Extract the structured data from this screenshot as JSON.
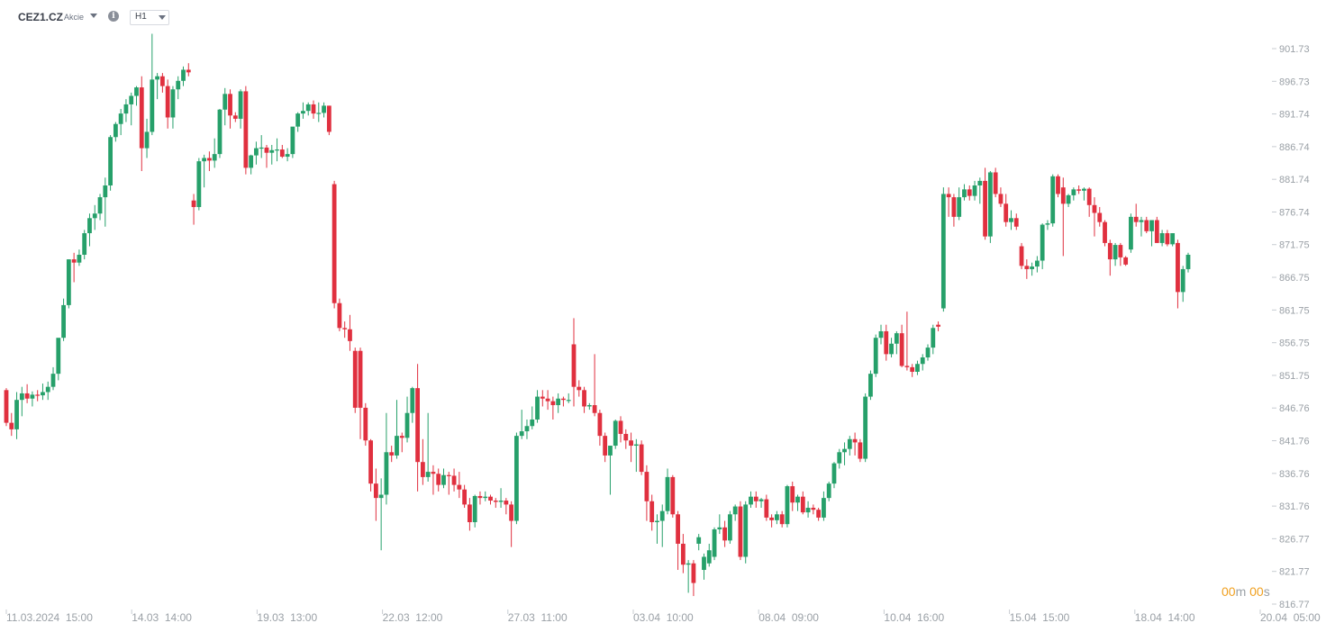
{
  "header": {
    "symbol": "CEZ1.CZ",
    "symbol_type": "Akcie",
    "info_icon": "info-icon",
    "timeframe": "H1"
  },
  "countdown": {
    "minutes": "00",
    "m": "m",
    "seconds": "00",
    "s": "s"
  },
  "colors": {
    "up": "#26a06a",
    "down": "#e0303f",
    "axis_text": "#9aa0a6",
    "tick": "#c8ccd2",
    "timer": "#f0a020"
  },
  "chart_data": {
    "type": "candlestick",
    "title": "",
    "xlabel": "",
    "ylabel": "",
    "ylim": [
      816.77,
      904.0
    ],
    "y_ticks": [
      "901.73",
      "896.73",
      "891.74",
      "886.74",
      "881.74",
      "876.74",
      "871.75",
      "866.75",
      "861.75",
      "856.75",
      "851.75",
      "846.76",
      "841.76",
      "836.76",
      "831.76",
      "826.77",
      "821.77",
      "816.77"
    ],
    "x_tick_labels": [
      "11.03.2024  15:00",
      "14.03  14:00",
      "19.03  13:00",
      "22.03  12:00",
      "27.03  11:00",
      "03.04  10:00",
      "08.04  09:00",
      "10.04  16:00",
      "15.04  15:00",
      "18.04  14:00",
      "20.04  05:00"
    ],
    "candles_ohlc": [
      [
        849.5,
        849.8,
        844.0,
        844.5
      ],
      [
        844.5,
        846.0,
        842.5,
        843.5
      ],
      [
        843.5,
        849.2,
        842.0,
        848.0
      ],
      [
        848.0,
        850.0,
        845.5,
        849.0
      ],
      [
        849.0,
        850.4,
        847.5,
        848.2
      ],
      [
        848.2,
        849.3,
        847.0,
        848.8
      ],
      [
        848.8,
        849.5,
        847.8,
        848.7
      ],
      [
        848.7,
        850.5,
        848.0,
        849.2
      ],
      [
        849.2,
        850.8,
        848.0,
        850.0
      ],
      [
        850.0,
        853.0,
        849.5,
        852.0
      ],
      [
        852.0,
        857.0,
        851.0,
        857.5
      ],
      [
        857.5,
        863.5,
        857.0,
        862.5
      ],
      [
        862.5,
        869.5,
        862.0,
        869.5
      ],
      [
        869.5,
        870.5,
        866.0,
        869.0
      ],
      [
        869.0,
        871.0,
        868.5,
        870.2
      ],
      [
        870.2,
        874.0,
        869.5,
        873.5
      ],
      [
        873.5,
        876.5,
        871.5,
        875.8
      ],
      [
        875.8,
        877.8,
        874.0,
        876.5
      ],
      [
        876.5,
        879.5,
        875.5,
        879.0
      ],
      [
        879.0,
        882.0,
        874.5,
        880.8
      ],
      [
        880.8,
        888.5,
        880.0,
        888.2
      ],
      [
        888.2,
        890.5,
        887.5,
        890.2
      ],
      [
        890.2,
        892.5,
        888.5,
        891.8
      ],
      [
        891.8,
        894.0,
        890.5,
        893.2
      ],
      [
        893.2,
        895.0,
        890.0,
        894.5
      ],
      [
        894.5,
        896.0,
        893.0,
        895.8
      ],
      [
        895.8,
        897.5,
        883.0,
        886.5
      ],
      [
        886.5,
        891.0,
        885.0,
        889.0
      ],
      [
        889.0,
        904.0,
        888.5,
        897.0
      ],
      [
        897.0,
        898.0,
        894.0,
        897.5
      ],
      [
        897.5,
        898.0,
        895.0,
        896.0
      ],
      [
        896.0,
        897.0,
        889.5,
        891.2
      ],
      [
        891.2,
        896.0,
        889.5,
        895.5
      ],
      [
        895.5,
        897.5,
        894.0,
        896.8
      ],
      [
        896.8,
        899.0,
        896.0,
        898.5
      ],
      [
        898.5,
        899.5,
        897.5,
        898.1
      ],
      [
        878.5,
        879.5,
        874.8,
        877.5
      ],
      [
        877.5,
        885.0,
        877.0,
        884.5
      ],
      [
        884.5,
        885.5,
        880.5,
        885.0
      ],
      [
        885.0,
        886.0,
        883.0,
        884.6
      ],
      [
        884.6,
        888.0,
        883.5,
        885.6
      ],
      [
        885.6,
        892.5,
        885.0,
        892.4
      ],
      [
        892.4,
        895.7,
        890.0,
        894.8
      ],
      [
        894.8,
        895.5,
        889.5,
        891.5
      ],
      [
        891.5,
        892.0,
        890.5,
        891.0
      ],
      [
        891.0,
        895.5,
        889.5,
        895.2
      ],
      [
        895.2,
        896.0,
        882.5,
        883.5
      ],
      [
        883.5,
        885.5,
        882.5,
        885.4
      ],
      [
        885.4,
        887.5,
        884.0,
        886.5
      ],
      [
        886.5,
        888.5,
        885.0,
        886.6
      ],
      [
        886.6,
        887.0,
        883.5,
        885.8
      ],
      [
        885.8,
        887.0,
        884.0,
        886.2
      ],
      [
        886.2,
        888.0,
        884.5,
        886.3
      ],
      [
        886.3,
        887.0,
        885.0,
        885.2
      ],
      [
        885.2,
        886.5,
        884.5,
        885.6
      ],
      [
        885.6,
        888.5,
        885.0,
        889.8
      ],
      [
        889.8,
        892.0,
        889.0,
        891.8
      ],
      [
        891.8,
        893.5,
        891.0,
        892.2
      ],
      [
        892.2,
        893.5,
        891.5,
        893.2
      ],
      [
        893.2,
        893.8,
        891.0,
        891.8
      ],
      [
        891.8,
        893.5,
        890.5,
        891.9
      ],
      [
        891.9,
        893.5,
        891.2,
        893.0
      ],
      [
        893.0,
        893.0,
        888.5,
        889.0
      ],
      [
        881.0,
        881.5,
        862.0,
        862.8
      ],
      [
        862.8,
        863.5,
        858.5,
        859.0
      ],
      [
        859.0,
        860.0,
        857.5,
        858.8
      ],
      [
        858.8,
        861.0,
        855.5,
        857.0
      ],
      [
        855.5,
        856.0,
        846.0,
        846.8
      ],
      [
        855.5,
        856.0,
        842.0,
        846.8
      ],
      [
        846.8,
        847.5,
        841.0,
        841.8
      ],
      [
        841.8,
        842.0,
        834.0,
        835.2
      ],
      [
        835.2,
        837.5,
        829.5,
        833.0
      ],
      [
        833.0,
        836.0,
        825.0,
        833.5
      ],
      [
        833.5,
        846.0,
        832.0,
        840.0
      ],
      [
        840.0,
        841.0,
        838.5,
        839.5
      ],
      [
        839.5,
        848.0,
        839.0,
        842.5
      ],
      [
        842.5,
        843.0,
        840.0,
        842.2
      ],
      [
        842.2,
        848.5,
        841.5,
        846.0
      ],
      [
        846.0,
        850.0,
        844.5,
        849.8
      ],
      [
        849.8,
        853.5,
        834.0,
        838.5
      ],
      [
        838.5,
        842.0,
        835.0,
        836.2
      ],
      [
        836.2,
        846.0,
        835.5,
        837.0
      ],
      [
        837.0,
        838.0,
        833.5,
        836.7
      ],
      [
        836.7,
        837.5,
        834.0,
        835.0
      ],
      [
        835.0,
        837.5,
        834.5,
        836.5
      ],
      [
        836.5,
        837.0,
        833.5,
        836.4
      ],
      [
        836.4,
        837.5,
        834.0,
        835.0
      ],
      [
        835.0,
        837.0,
        833.0,
        834.3
      ],
      [
        834.3,
        835.0,
        831.5,
        832.0
      ],
      [
        832.0,
        833.0,
        828.0,
        829.3
      ],
      [
        829.3,
        833.5,
        828.5,
        833.3
      ],
      [
        833.3,
        834.0,
        832.0,
        833.0
      ],
      [
        833.0,
        834.0,
        832.5,
        833.2
      ],
      [
        833.2,
        833.5,
        832.0,
        832.6
      ],
      [
        832.6,
        833.0,
        831.5,
        832.4
      ],
      [
        832.4,
        834.5,
        831.5,
        832.6
      ],
      [
        832.6,
        833.0,
        830.5,
        832.0
      ],
      [
        832.0,
        832.5,
        825.5,
        829.5
      ],
      [
        829.5,
        843.0,
        829.0,
        842.5
      ],
      [
        842.5,
        846.5,
        842.0,
        843.2
      ],
      [
        843.2,
        845.0,
        842.0,
        844.0
      ],
      [
        844.0,
        847.0,
        843.5,
        845.0
      ],
      [
        845.0,
        849.5,
        844.5,
        848.5
      ],
      [
        848.5,
        849.5,
        847.0,
        848.2
      ],
      [
        848.2,
        849.5,
        846.5,
        847.8
      ],
      [
        847.8,
        848.5,
        845.0,
        847.2
      ],
      [
        847.2,
        849.0,
        846.0,
        848.2
      ],
      [
        848.2,
        848.5,
        847.0,
        848.0
      ],
      [
        848.0,
        849.0,
        847.5,
        848.0
      ],
      [
        856.5,
        860.5,
        847.0,
        850.0
      ],
      [
        850.0,
        851.0,
        848.5,
        849.5
      ],
      [
        849.5,
        850.0,
        846.0,
        847.0
      ],
      [
        847.0,
        847.5,
        846.5,
        847.2
      ],
      [
        847.2,
        855.0,
        845.5,
        846.0
      ],
      [
        846.0,
        846.5,
        841.0,
        842.5
      ],
      [
        842.5,
        843.0,
        838.5,
        839.5
      ],
      [
        839.5,
        841.0,
        833.5,
        841.0
      ],
      [
        841.0,
        845.0,
        840.5,
        844.8
      ],
      [
        844.8,
        845.5,
        841.5,
        842.8
      ],
      [
        842.8,
        843.5,
        840.5,
        841.8
      ],
      [
        841.8,
        843.0,
        838.5,
        841.0
      ],
      [
        841.0,
        842.0,
        837.0,
        841.2
      ],
      [
        841.2,
        841.8,
        836.5,
        837.0
      ],
      [
        837.0,
        838.0,
        829.5,
        832.5
      ],
      [
        832.5,
        833.5,
        828.0,
        829.3
      ],
      [
        829.3,
        830.5,
        826.0,
        829.5
      ],
      [
        829.5,
        832.0,
        825.5,
        831.0
      ],
      [
        831.0,
        837.5,
        830.5,
        836.2
      ],
      [
        836.2,
        836.5,
        830.0,
        830.5
      ],
      [
        830.5,
        831.0,
        822.0,
        826.0
      ],
      [
        826.0,
        827.5,
        821.5,
        822.8
      ],
      [
        822.8,
        823.5,
        818.5,
        823.0
      ],
      [
        823.0,
        823.5,
        818.0,
        820.0
      ],
      [
        826.0,
        827.5,
        825.0,
        827.0
      ],
      [
        822.0,
        824.5,
        820.5,
        824.0
      ],
      [
        823.0,
        826.0,
        822.5,
        825.0
      ],
      [
        824.0,
        828.5,
        823.5,
        828.2
      ],
      [
        828.2,
        830.5,
        827.5,
        828.5
      ],
      [
        828.5,
        829.5,
        825.5,
        826.5
      ],
      [
        826.5,
        831.0,
        826.0,
        830.5
      ],
      [
        830.5,
        832.0,
        829.5,
        831.7
      ],
      [
        831.7,
        832.5,
        823.5,
        824.0
      ],
      [
        824.0,
        832.5,
        823.0,
        832.0
      ],
      [
        832.0,
        834.0,
        831.5,
        833.2
      ],
      [
        833.2,
        834.0,
        831.5,
        832.5
      ],
      [
        832.5,
        833.0,
        831.5,
        832.8
      ],
      [
        832.8,
        833.5,
        829.5,
        830.0
      ],
      [
        830.0,
        830.5,
        828.5,
        829.6
      ],
      [
        829.6,
        831.0,
        829.0,
        830.5
      ],
      [
        830.5,
        831.0,
        828.5,
        829.0
      ],
      [
        829.0,
        835.0,
        828.5,
        834.8
      ],
      [
        834.8,
        835.5,
        831.0,
        832.3
      ],
      [
        832.3,
        833.5,
        831.0,
        833.2
      ],
      [
        833.2,
        834.0,
        830.5,
        830.8
      ],
      [
        830.8,
        832.5,
        830.0,
        831.5
      ],
      [
        831.5,
        832.0,
        830.5,
        831.2
      ],
      [
        831.2,
        831.5,
        829.5,
        830.0
      ],
      [
        830.0,
        834.0,
        829.5,
        833.0
      ],
      [
        833.0,
        835.5,
        832.5,
        835.2
      ],
      [
        835.2,
        838.5,
        834.5,
        838.3
      ],
      [
        838.3,
        840.5,
        837.5,
        840.0
      ],
      [
        840.0,
        841.5,
        838.0,
        840.5
      ],
      [
        840.5,
        842.5,
        839.5,
        842.0
      ],
      [
        842.0,
        843.0,
        839.5,
        841.5
      ],
      [
        841.5,
        842.0,
        838.5,
        839.0
      ],
      [
        839.0,
        849.0,
        838.5,
        848.5
      ],
      [
        848.5,
        852.5,
        848.0,
        852.0
      ],
      [
        852.0,
        858.0,
        851.5,
        857.5
      ],
      [
        857.5,
        859.5,
        856.5,
        858.5
      ],
      [
        858.5,
        859.5,
        854.0,
        855.0
      ],
      [
        855.0,
        857.5,
        854.5,
        856.6
      ],
      [
        856.6,
        858.5,
        855.0,
        858.2
      ],
      [
        858.2,
        859.5,
        853.0,
        853.2
      ],
      [
        853.2,
        861.5,
        852.5,
        853.0
      ],
      [
        853.0,
        853.5,
        851.5,
        852.3
      ],
      [
        852.3,
        854.0,
        851.8,
        853.5
      ],
      [
        853.5,
        855.0,
        852.5,
        854.5
      ],
      [
        854.5,
        856.5,
        854.0,
        856.0
      ],
      [
        856.0,
        859.5,
        855.0,
        859.0
      ],
      [
        859.5,
        860.0,
        858.5,
        859.2
      ],
      [
        862.0,
        880.5,
        861.5,
        879.5
      ],
      [
        879.5,
        880.5,
        876.0,
        879.0
      ],
      [
        879.0,
        879.5,
        874.5,
        876.0
      ],
      [
        876.0,
        880.5,
        875.5,
        879.0
      ],
      [
        879.0,
        881.0,
        878.5,
        880.2
      ],
      [
        880.2,
        880.8,
        878.5,
        879.2
      ],
      [
        879.2,
        881.5,
        878.5,
        880.8
      ],
      [
        880.8,
        882.0,
        878.0,
        881.5
      ],
      [
        881.5,
        883.5,
        872.5,
        873.0
      ],
      [
        873.0,
        883.0,
        872.0,
        882.8
      ],
      [
        882.8,
        883.5,
        879.0,
        879.5
      ],
      [
        879.5,
        880.5,
        877.5,
        878.0
      ],
      [
        878.0,
        879.5,
        874.5,
        875.2
      ],
      [
        875.2,
        877.0,
        874.0,
        875.8
      ],
      [
        875.8,
        876.5,
        874.0,
        874.5
      ],
      [
        871.5,
        872.0,
        868.0,
        868.5
      ],
      [
        868.5,
        869.5,
        866.5,
        868.0
      ],
      [
        868.0,
        869.0,
        867.0,
        868.4
      ],
      [
        868.4,
        870.0,
        867.5,
        869.3
      ],
      [
        869.3,
        875.0,
        868.0,
        874.8
      ],
      [
        874.8,
        875.5,
        874.0,
        875.0
      ],
      [
        875.0,
        882.5,
        874.5,
        882.2
      ],
      [
        882.2,
        882.5,
        879.0,
        879.5
      ],
      [
        880.5,
        882.0,
        870.0,
        878.0
      ],
      [
        878.0,
        879.5,
        877.5,
        879.3
      ],
      [
        879.3,
        880.5,
        878.5,
        880.2
      ],
      [
        880.2,
        880.8,
        879.5,
        880.0
      ],
      [
        880.0,
        880.5,
        878.5,
        880.3
      ],
      [
        880.3,
        880.5,
        876.0,
        877.8
      ],
      [
        877.8,
        879.0,
        873.0,
        876.6
      ],
      [
        876.6,
        877.5,
        874.5,
        875.2
      ],
      [
        875.2,
        875.5,
        871.5,
        872.0
      ],
      [
        872.0,
        872.5,
        867.0,
        869.5
      ],
      [
        869.5,
        872.0,
        868.5,
        871.7
      ],
      [
        871.7,
        872.0,
        868.5,
        869.8
      ],
      [
        869.8,
        870.0,
        868.5,
        868.7
      ],
      [
        871.0,
        876.5,
        870.5,
        876.0
      ],
      [
        876.0,
        878.0,
        874.5,
        875.2
      ],
      [
        875.2,
        876.0,
        873.0,
        875.5
      ],
      [
        875.5,
        876.0,
        873.5,
        873.8
      ],
      [
        873.8,
        875.5,
        871.5,
        875.5
      ],
      [
        875.5,
        876.0,
        872.0,
        872.0
      ],
      [
        872.0,
        874.0,
        871.5,
        873.5
      ],
      [
        873.5,
        874.0,
        871.5,
        871.8
      ],
      [
        871.8,
        873.5,
        871.5,
        873.5
      ],
      [
        872.0,
        872.5,
        862.0,
        864.5
      ],
      [
        864.5,
        868.5,
        863.0,
        868.0
      ],
      [
        868.0,
        870.5,
        867.5,
        870.2
      ]
    ]
  }
}
